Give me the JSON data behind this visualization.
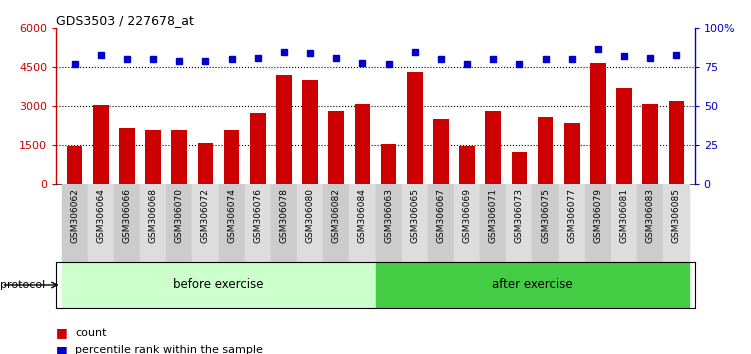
{
  "title": "GDS3503 / 227678_at",
  "categories": [
    "GSM306062",
    "GSM306064",
    "GSM306066",
    "GSM306068",
    "GSM306070",
    "GSM306072",
    "GSM306074",
    "GSM306076",
    "GSM306078",
    "GSM306080",
    "GSM306082",
    "GSM306084",
    "GSM306063",
    "GSM306065",
    "GSM306067",
    "GSM306069",
    "GSM306071",
    "GSM306073",
    "GSM306075",
    "GSM306077",
    "GSM306079",
    "GSM306081",
    "GSM306083",
    "GSM306085"
  ],
  "counts": [
    1450,
    3050,
    2150,
    2100,
    2100,
    1600,
    2100,
    2750,
    4200,
    4000,
    2800,
    3100,
    1550,
    4300,
    2500,
    1450,
    2800,
    1250,
    2600,
    2350,
    4650,
    3700,
    3100,
    3200
  ],
  "percentiles": [
    77,
    83,
    80,
    80,
    79,
    79,
    80,
    81,
    85,
    84,
    81,
    78,
    77,
    85,
    80,
    77,
    80,
    77,
    80,
    80,
    87,
    82,
    81,
    83
  ],
  "before_count": 12,
  "after_count": 12,
  "bar_color": "#cc0000",
  "dot_color": "#0000cc",
  "before_color": "#ccffcc",
  "after_color": "#44cc44",
  "plot_bg": "#ffffff",
  "ylim_left": [
    0,
    6000
  ],
  "ylim_right": [
    0,
    100
  ],
  "yticks_left": [
    0,
    1500,
    3000,
    4500,
    6000
  ],
  "ytick_labels_left": [
    "0",
    "1500",
    "3000",
    "4500",
    "6000"
  ],
  "yticks_right": [
    0,
    25,
    50,
    75,
    100
  ],
  "ytick_labels_right": [
    "0",
    "25",
    "50",
    "75",
    "100%"
  ],
  "grid_values": [
    1500,
    3000,
    4500
  ],
  "legend_count_label": "count",
  "legend_pct_label": "percentile rank within the sample",
  "protocol_label": "protocol",
  "before_label": "before exercise",
  "after_label": "after exercise"
}
